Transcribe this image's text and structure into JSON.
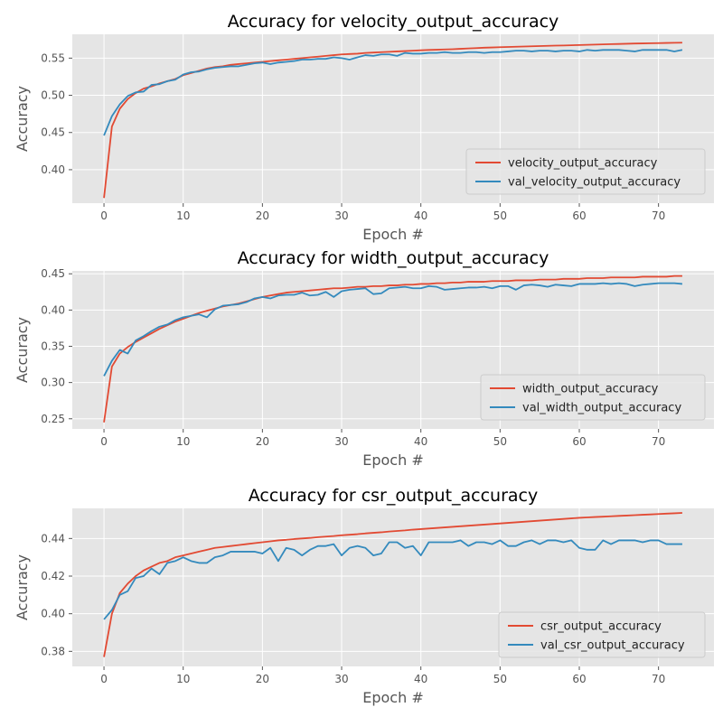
{
  "figure": {
    "colors": {
      "background": "#e5e5e5",
      "grid": "#ffffff",
      "train": "#e24a33",
      "val": "#348abd",
      "tick_text": "#555555",
      "title_text": "#000000"
    }
  },
  "chart_data": [
    {
      "type": "line",
      "title": "Accuracy for velocity_output_accuracy",
      "xlabel": "Epoch #",
      "ylabel": "Accuracy",
      "xlim": [
        -4,
        77
      ],
      "ylim": [
        0.355,
        0.582
      ],
      "xticks": [
        0,
        10,
        20,
        30,
        40,
        50,
        60,
        70
      ],
      "yticks": [
        0.4,
        0.45,
        0.5,
        0.55
      ],
      "ytick_labels": [
        "0.40",
        "0.45",
        "0.50",
        "0.55"
      ],
      "legend": "lower-right",
      "grid": true,
      "series": [
        {
          "name": "velocity_output_accuracy",
          "color": "#e24a33",
          "values": [
            0.362,
            0.458,
            0.482,
            0.495,
            0.503,
            0.509,
            0.512,
            0.516,
            0.519,
            0.522,
            0.527,
            0.53,
            0.533,
            0.536,
            0.538,
            0.539,
            0.541,
            0.542,
            0.543,
            0.544,
            0.545,
            0.546,
            0.547,
            0.548,
            0.549,
            0.55,
            0.551,
            0.552,
            0.553,
            0.554,
            0.555,
            0.5555,
            0.556,
            0.557,
            0.5575,
            0.558,
            0.5585,
            0.559,
            0.5595,
            0.56,
            0.5605,
            0.561,
            0.5613,
            0.5617,
            0.562,
            0.5625,
            0.563,
            0.5635,
            0.564,
            0.5643,
            0.5647,
            0.565,
            0.5653,
            0.5656,
            0.5659,
            0.5662,
            0.5665,
            0.5668,
            0.567,
            0.5673,
            0.5676,
            0.5679,
            0.5682,
            0.5685,
            0.5688,
            0.569,
            0.5693,
            0.5696,
            0.5698,
            0.57,
            0.5702,
            0.5704,
            0.5706,
            0.5708
          ]
        },
        {
          "name": "val_velocity_output_accuracy",
          "color": "#348abd",
          "values": [
            0.446,
            0.472,
            0.488,
            0.499,
            0.504,
            0.505,
            0.514,
            0.515,
            0.519,
            0.521,
            0.528,
            0.531,
            0.532,
            0.535,
            0.537,
            0.538,
            0.539,
            0.539,
            0.541,
            0.543,
            0.544,
            0.542,
            0.544,
            0.545,
            0.546,
            0.548,
            0.548,
            0.549,
            0.549,
            0.551,
            0.55,
            0.548,
            0.551,
            0.554,
            0.553,
            0.555,
            0.555,
            0.553,
            0.557,
            0.556,
            0.556,
            0.557,
            0.557,
            0.558,
            0.557,
            0.557,
            0.558,
            0.558,
            0.557,
            0.558,
            0.558,
            0.559,
            0.56,
            0.56,
            0.559,
            0.56,
            0.56,
            0.559,
            0.56,
            0.56,
            0.559,
            0.561,
            0.56,
            0.561,
            0.561,
            0.561,
            0.56,
            0.559,
            0.561,
            0.561,
            0.561,
            0.561,
            0.559,
            0.561
          ]
        }
      ]
    },
    {
      "type": "line",
      "title": "Accuracy for width_output_accuracy",
      "xlabel": "Epoch #",
      "ylabel": "Accuracy",
      "xlim": [
        -4,
        77
      ],
      "ylim": [
        0.236,
        0.454
      ],
      "xticks": [
        0,
        10,
        20,
        30,
        40,
        50,
        60,
        70
      ],
      "yticks": [
        0.25,
        0.3,
        0.35,
        0.4,
        0.45
      ],
      "ytick_labels": [
        "0.25",
        "0.30",
        "0.35",
        "0.40",
        "0.45"
      ],
      "legend": "lower-right",
      "grid": true,
      "series": [
        {
          "name": "width_output_accuracy",
          "color": "#e24a33",
          "values": [
            0.245,
            0.322,
            0.34,
            0.349,
            0.356,
            0.362,
            0.368,
            0.374,
            0.379,
            0.384,
            0.388,
            0.392,
            0.396,
            0.399,
            0.402,
            0.405,
            0.407,
            0.409,
            0.412,
            0.415,
            0.418,
            0.42,
            0.422,
            0.424,
            0.425,
            0.426,
            0.427,
            0.428,
            0.429,
            0.43,
            0.43,
            0.431,
            0.432,
            0.432,
            0.433,
            0.433,
            0.434,
            0.434,
            0.435,
            0.435,
            0.436,
            0.436,
            0.437,
            0.437,
            0.438,
            0.438,
            0.439,
            0.439,
            0.439,
            0.44,
            0.44,
            0.44,
            0.441,
            0.441,
            0.441,
            0.442,
            0.442,
            0.442,
            0.443,
            0.443,
            0.443,
            0.444,
            0.444,
            0.444,
            0.445,
            0.445,
            0.445,
            0.445,
            0.446,
            0.446,
            0.446,
            0.446,
            0.447,
            0.447
          ]
        },
        {
          "name": "val_width_output_accuracy",
          "color": "#348abd",
          "values": [
            0.309,
            0.33,
            0.345,
            0.34,
            0.358,
            0.364,
            0.371,
            0.377,
            0.38,
            0.386,
            0.39,
            0.392,
            0.394,
            0.39,
            0.401,
            0.406,
            0.407,
            0.408,
            0.411,
            0.416,
            0.418,
            0.416,
            0.42,
            0.421,
            0.421,
            0.424,
            0.42,
            0.421,
            0.425,
            0.418,
            0.426,
            0.428,
            0.429,
            0.43,
            0.422,
            0.423,
            0.43,
            0.431,
            0.432,
            0.43,
            0.43,
            0.433,
            0.432,
            0.428,
            0.429,
            0.43,
            0.431,
            0.431,
            0.432,
            0.43,
            0.433,
            0.433,
            0.428,
            0.434,
            0.435,
            0.434,
            0.432,
            0.435,
            0.434,
            0.433,
            0.436,
            0.436,
            0.436,
            0.437,
            0.436,
            0.437,
            0.436,
            0.433,
            0.435,
            0.436,
            0.437,
            0.437,
            0.437,
            0.436
          ]
        }
      ]
    },
    {
      "type": "line",
      "title": "Accuracy for csr_output_accuracy",
      "xlabel": "Epoch #",
      "ylabel": "Accuracy",
      "xlim": [
        -4,
        77
      ],
      "ylim": [
        0.372,
        0.456
      ],
      "xticks": [
        0,
        10,
        20,
        30,
        40,
        50,
        60,
        70
      ],
      "yticks": [
        0.38,
        0.4,
        0.42,
        0.44
      ],
      "ytick_labels": [
        "0.38",
        "0.40",
        "0.42",
        "0.44"
      ],
      "legend": "lower-right",
      "grid": true,
      "series": [
        {
          "name": "csr_output_accuracy",
          "color": "#e24a33",
          "values": [
            0.377,
            0.4,
            0.411,
            0.416,
            0.42,
            0.423,
            0.425,
            0.427,
            0.428,
            0.43,
            0.431,
            0.432,
            0.433,
            0.434,
            0.435,
            0.4355,
            0.436,
            0.4365,
            0.437,
            0.4375,
            0.438,
            0.4385,
            0.439,
            0.4393,
            0.4397,
            0.44,
            0.4403,
            0.4407,
            0.441,
            0.4413,
            0.4417,
            0.442,
            0.4423,
            0.4427,
            0.443,
            0.4433,
            0.4437,
            0.444,
            0.4443,
            0.4447,
            0.445,
            0.4453,
            0.4456,
            0.4459,
            0.4462,
            0.4465,
            0.4468,
            0.4471,
            0.4474,
            0.4477,
            0.448,
            0.4483,
            0.4486,
            0.4489,
            0.4492,
            0.4495,
            0.4498,
            0.4501,
            0.4504,
            0.4507,
            0.451,
            0.4512,
            0.4514,
            0.4516,
            0.4518,
            0.452,
            0.4522,
            0.4524,
            0.4526,
            0.4528,
            0.453,
            0.4532,
            0.4534,
            0.4536
          ]
        },
        {
          "name": "val_csr_output_accuracy",
          "color": "#348abd",
          "values": [
            0.397,
            0.402,
            0.41,
            0.412,
            0.419,
            0.42,
            0.424,
            0.421,
            0.427,
            0.428,
            0.43,
            0.428,
            0.427,
            0.427,
            0.43,
            0.431,
            0.433,
            0.433,
            0.433,
            0.433,
            0.432,
            0.435,
            0.428,
            0.435,
            0.434,
            0.431,
            0.434,
            0.436,
            0.436,
            0.437,
            0.431,
            0.435,
            0.436,
            0.435,
            0.431,
            0.432,
            0.438,
            0.438,
            0.435,
            0.436,
            0.431,
            0.438,
            0.438,
            0.438,
            0.438,
            0.439,
            0.436,
            0.438,
            0.438,
            0.437,
            0.439,
            0.436,
            0.436,
            0.438,
            0.439,
            0.437,
            0.439,
            0.439,
            0.438,
            0.439,
            0.435,
            0.434,
            0.434,
            0.439,
            0.437,
            0.439,
            0.439,
            0.439,
            0.438,
            0.439,
            0.439,
            0.437,
            0.437,
            0.437
          ]
        }
      ]
    }
  ]
}
